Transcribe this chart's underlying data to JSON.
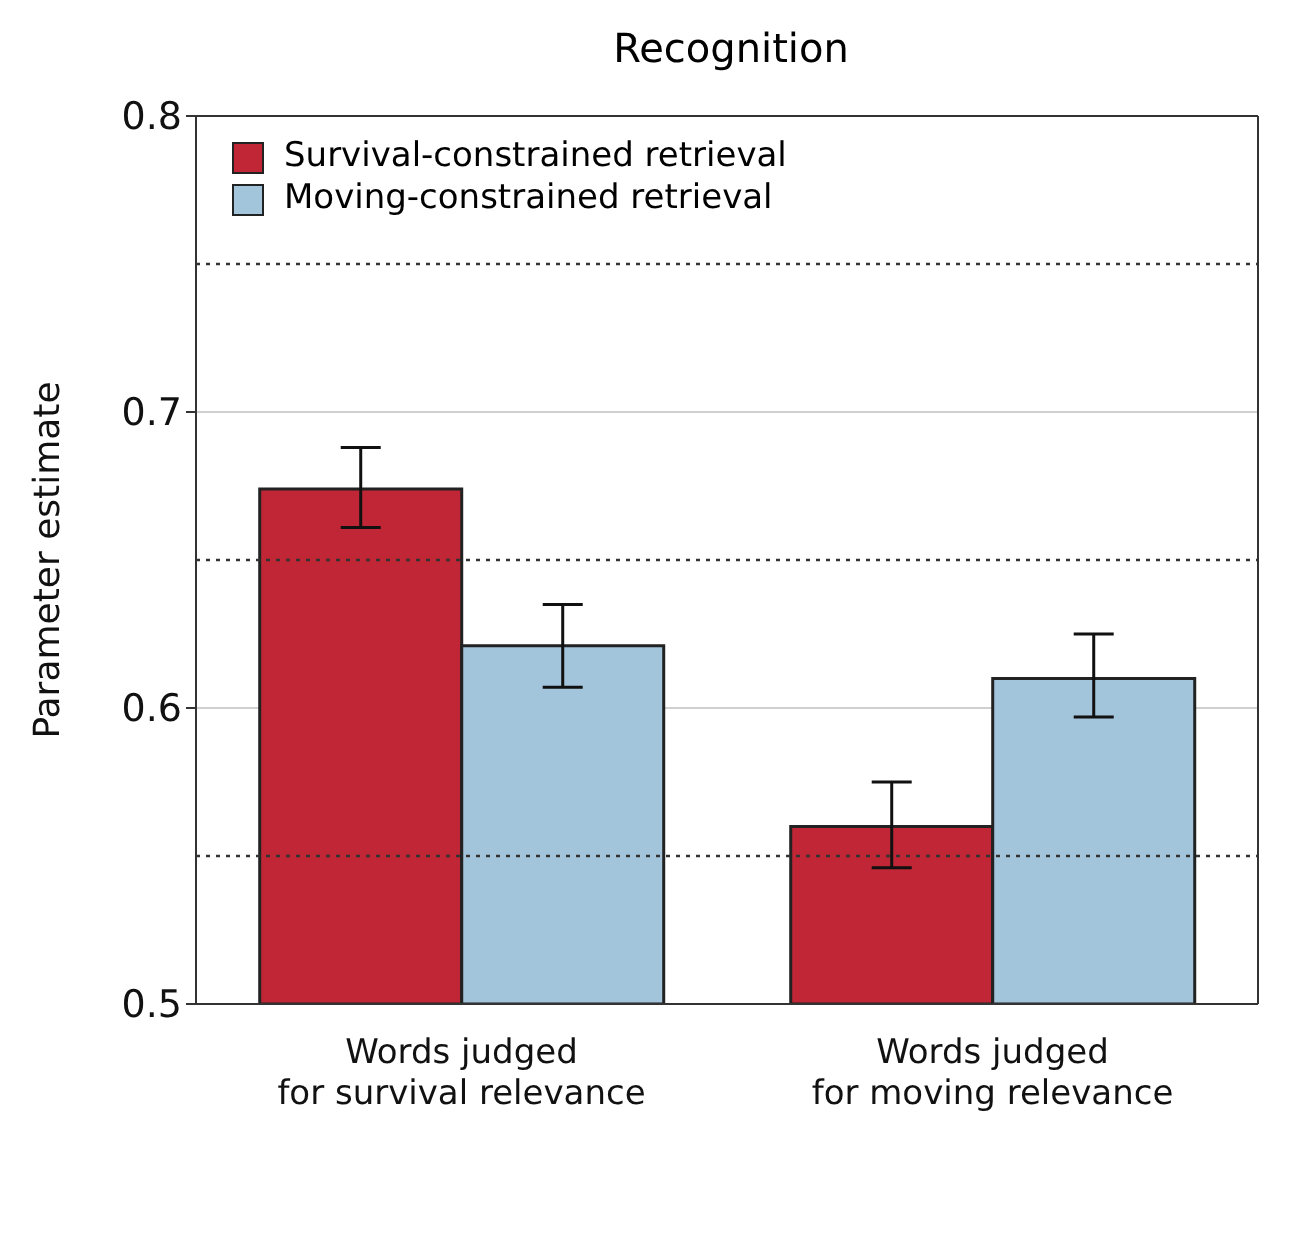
{
  "chart_data": {
    "type": "bar",
    "title": "Recognition",
    "ylabel": "Parameter estimate",
    "categories": [
      "Words judged\nfor survival relevance",
      "Words judged\nfor moving relevance"
    ],
    "series": [
      {
        "name": "Survival-constrained retrieval",
        "color": "#c02636",
        "values": [
          0.674,
          0.56
        ],
        "errors": [
          [
            0.661,
            0.688
          ],
          [
            0.546,
            0.575
          ]
        ]
      },
      {
        "name": "Moving-constrained retrieval",
        "color": "#a3c5dc",
        "values": [
          0.621,
          0.61
        ],
        "errors": [
          [
            0.607,
            0.635
          ],
          [
            0.597,
            0.625
          ]
        ]
      }
    ],
    "ylim": [
      0.5,
      0.8
    ],
    "yticks": [
      0.5,
      0.6,
      0.7,
      0.8
    ],
    "grid": "y",
    "legend": "top left",
    "ref_lines": [
      {
        "axis": "y",
        "value": 0.55,
        "line_style": "dotted"
      },
      {
        "axis": "y",
        "value": 0.65,
        "line_style": "dotted"
      },
      {
        "axis": "y",
        "value": 0.75,
        "line_style": "dotted"
      }
    ]
  }
}
